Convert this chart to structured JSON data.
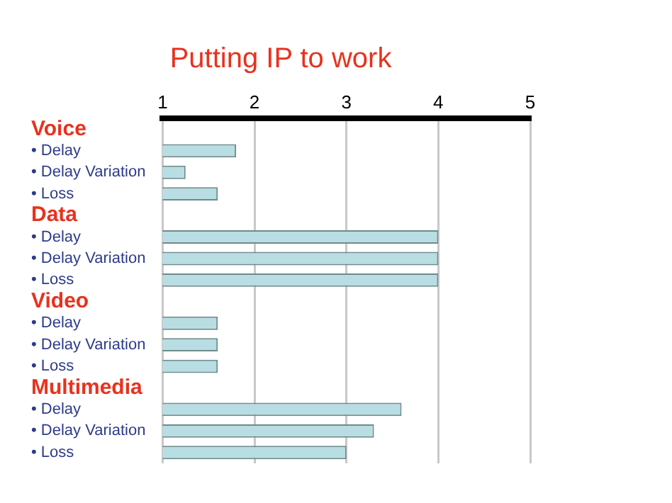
{
  "chart_data": {
    "type": "bar",
    "orientation": "horizontal",
    "title": "Putting IP to work",
    "categories": [
      "Voice",
      "• Delay",
      "• Delay Variation",
      "• Loss",
      "Data",
      "• Delay",
      "• Delay Variation",
      "• Loss",
      "Video",
      "• Delay",
      "• Delay Variation",
      "• Loss",
      "Multimedia",
      "• Delay",
      "• Delay Variation",
      "• Loss"
    ],
    "values": [
      null,
      1.8,
      1.25,
      1.6,
      null,
      4,
      4,
      4,
      null,
      1.6,
      1.6,
      1.6,
      null,
      3.6,
      3.3,
      3
    ],
    "color": "#b8dde3",
    "xlim": [
      1,
      5
    ],
    "xticks": [
      1,
      2,
      3,
      4,
      5
    ],
    "grid": "x"
  }
}
